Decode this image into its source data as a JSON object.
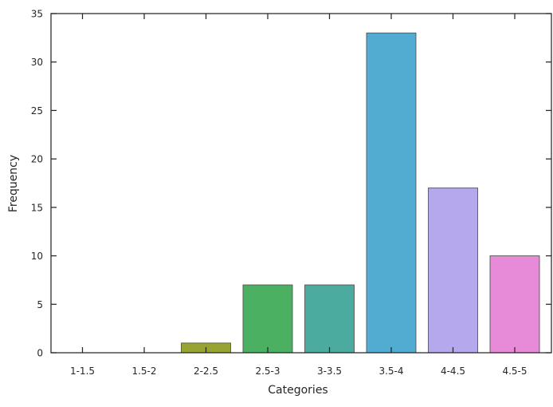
{
  "chart_data": {
    "type": "bar",
    "title": "",
    "xlabel": "Categories",
    "ylabel": "Frequency",
    "categories": [
      "1-1.5",
      "1.5-2",
      "2-2.5",
      "2.5-3",
      "3-3.5",
      "3.5-4",
      "4-4.5",
      "4.5-5"
    ],
    "values": [
      0,
      0,
      1,
      7,
      7,
      33,
      17,
      10
    ],
    "colors": [
      "#f77189",
      "#d58c32",
      "#97a431",
      "#4bb062",
      "#4aab9e",
      "#52abd0",
      "#b5a8ec",
      "#e78ad7"
    ],
    "ylim": [
      0,
      35
    ],
    "yticks": [
      0,
      5,
      10,
      15,
      20,
      25,
      30,
      35
    ],
    "grid": false,
    "legend": "none"
  }
}
